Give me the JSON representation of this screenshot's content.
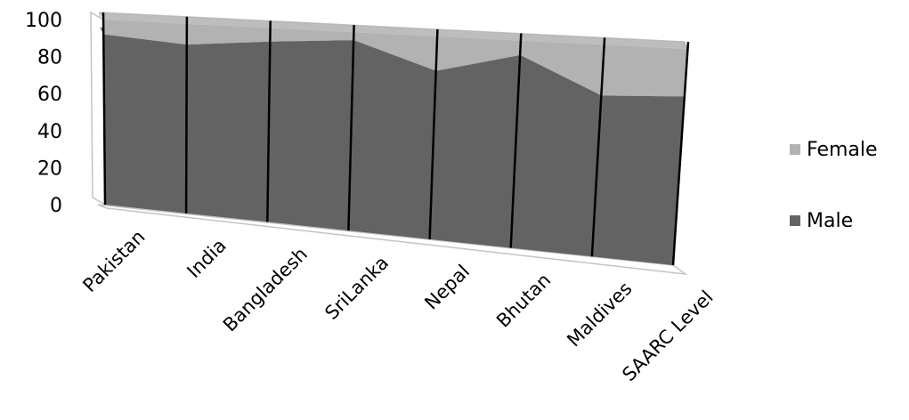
{
  "chart_data": {
    "type": "area",
    "stacked": true,
    "three_d": true,
    "title": "",
    "xlabel": "",
    "ylabel": "",
    "categories": [
      "Pakistan",
      "India",
      "Bangladesh",
      "SriLanka",
      "Nepal",
      "Bhutan",
      "Maldives",
      "SAARC Level"
    ],
    "series": [
      {
        "name": "Male",
        "values": [
          92,
          89,
          93,
          96,
          83,
          93,
          76,
          78
        ],
        "color": "#636363"
      },
      {
        "name": "Female",
        "values": [
          8,
          11,
          7,
          4,
          17,
          7,
          24,
          22
        ],
        "color": "#b2b2b2"
      }
    ],
    "y_ticks": [
      "0",
      "20",
      "40",
      "60",
      "80",
      "100"
    ],
    "ylim": [
      0,
      100
    ],
    "grid": false,
    "legend_position": "right"
  }
}
